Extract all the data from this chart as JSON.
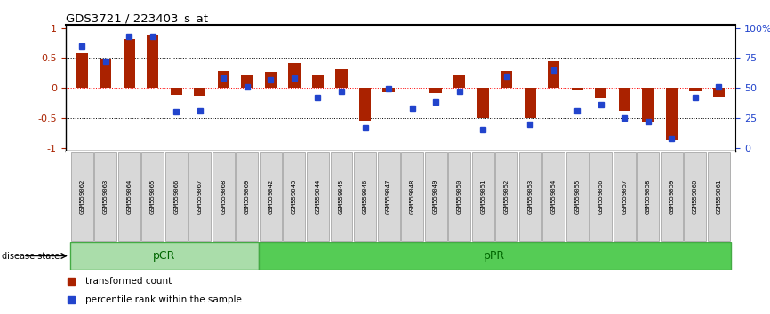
{
  "title": "GDS3721 / 223403_s_at",
  "samples": [
    "GSM559062",
    "GSM559063",
    "GSM559064",
    "GSM559065",
    "GSM559066",
    "GSM559067",
    "GSM559068",
    "GSM559069",
    "GSM559042",
    "GSM559043",
    "GSM559044",
    "GSM559045",
    "GSM559046",
    "GSM559047",
    "GSM559048",
    "GSM559049",
    "GSM559050",
    "GSM559051",
    "GSM559052",
    "GSM559053",
    "GSM559054",
    "GSM559055",
    "GSM559056",
    "GSM559057",
    "GSM559058",
    "GSM559059",
    "GSM559060",
    "GSM559061"
  ],
  "transformed_count": [
    0.58,
    0.48,
    0.82,
    0.88,
    -0.12,
    -0.13,
    0.28,
    0.22,
    0.27,
    0.42,
    0.22,
    0.32,
    -0.55,
    -0.07,
    0.0,
    -0.08,
    0.22,
    -0.5,
    0.28,
    -0.5,
    0.45,
    -0.05,
    -0.18,
    -0.38,
    -0.58,
    -0.88,
    -0.06,
    -0.14
  ],
  "percentile_rank": [
    0.85,
    0.72,
    0.93,
    0.93,
    0.3,
    0.31,
    0.58,
    0.51,
    0.57,
    0.58,
    0.42,
    0.47,
    0.17,
    0.49,
    0.33,
    0.38,
    0.47,
    0.15,
    0.6,
    0.2,
    0.65,
    0.31,
    0.36,
    0.25,
    0.22,
    0.08,
    0.42,
    0.51
  ],
  "pCR_count": 8,
  "pPR_count": 20,
  "bar_color": "#aa2200",
  "dot_color": "#2244cc",
  "pCR_color": "#aaddaa",
  "pPR_color": "#55cc55",
  "group_label_color": "#006600",
  "yticks_left": [
    -1,
    -0.5,
    0,
    0.5,
    1
  ],
  "ytick_labels_left": [
    "-1",
    "-0.5",
    "0",
    "0.5",
    "1"
  ],
  "yticks_right_pct": [
    0,
    25,
    50,
    75,
    100
  ],
  "right_tick_labels": [
    "0",
    "25",
    "50",
    "75",
    "100%"
  ]
}
